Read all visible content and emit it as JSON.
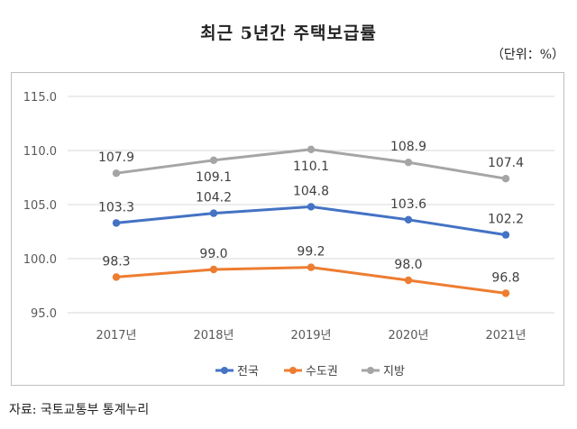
{
  "title": "최근 5년간 주택보급률",
  "unit": "（단위：%）",
  "source": "자료: 국토교통부 통계누리",
  "chart_data": {
    "type": "line",
    "categories": [
      "2017년",
      "2018년",
      "2019년",
      "2020년",
      "2021년"
    ],
    "y_ticks": [
      "115.0",
      "110.0",
      "105.0",
      "100.0",
      "95.0"
    ],
    "ylim": [
      95,
      115
    ],
    "grid": "horizontal",
    "legend_position": "bottom",
    "series": [
      {
        "name": "전국",
        "color": "#4472C4",
        "values": [
          103.3,
          104.2,
          104.8,
          103.6,
          102.2
        ],
        "labels": [
          "103.3",
          "104.2",
          "104.8",
          "103.6",
          "102.2"
        ],
        "label_side": [
          "above",
          "above",
          "above",
          "above",
          "above"
        ]
      },
      {
        "name": "수도권",
        "color": "#ED7D31",
        "values": [
          98.3,
          99.0,
          99.2,
          98.0,
          96.8
        ],
        "labels": [
          "98.3",
          "99.0",
          "99.2",
          "98.0",
          "96.8"
        ],
        "label_side": [
          "above",
          "above",
          "above",
          "above",
          "above"
        ]
      },
      {
        "name": "지방",
        "color": "#A5A5A5",
        "values": [
          107.9,
          109.1,
          110.1,
          108.9,
          107.4
        ],
        "labels": [
          "107.9",
          "109.1",
          "110.1",
          "108.9",
          "107.4"
        ],
        "label_side": [
          "above",
          "below",
          "below",
          "above",
          "above"
        ]
      }
    ]
  }
}
